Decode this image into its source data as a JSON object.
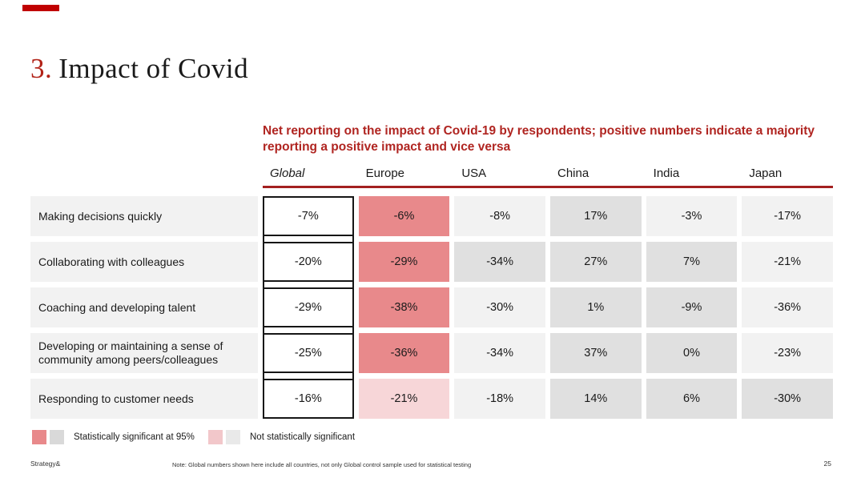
{
  "slide": {
    "title_number": "3.",
    "title_text": "Impact of Covid",
    "subtitle_line1": "Net reporting on the impact of Covid-19 by respondents; positive numbers indicate a majority",
    "subtitle_line2": "reporting a positive impact and vice versa",
    "footer_brand": "Strategy&",
    "footer_note": "Note: Global numbers shown here include all countries, not only Global control sample used for statistical testing",
    "page_number": "25"
  },
  "colors": {
    "accent_red": "#c00000",
    "title_red": "#b22318",
    "subtitle_red": "#b02521",
    "rule_red": "#a32020",
    "significant_red": "#e8898b",
    "not_significant_pink": "#f7d6d8",
    "significant_gray": "#e0e0e0",
    "not_significant_gray": "#f2f2f2",
    "legend_sig_gray": "#d9d9d9",
    "legend_pink": "#f2c7ca",
    "legend_nonsig_gray": "#e9e9e9",
    "text_dark": "#1a1a1a",
    "footer_text": "#333333"
  },
  "table": {
    "columns": [
      "Global",
      "Europe",
      "USA",
      "China",
      "India",
      "Japan"
    ],
    "rows": [
      {
        "label": "Making decisions quickly",
        "cells": [
          {
            "value": "-7%",
            "style": "global"
          },
          {
            "value": "-6%",
            "style": "sig-red"
          },
          {
            "value": "-8%",
            "style": "nonsig-gray"
          },
          {
            "value": "17%",
            "style": "sig-gray"
          },
          {
            "value": "-3%",
            "style": "nonsig-gray"
          },
          {
            "value": "-17%",
            "style": "nonsig-gray"
          }
        ]
      },
      {
        "label": "Collaborating with colleagues",
        "cells": [
          {
            "value": "-20%",
            "style": "global"
          },
          {
            "value": "-29%",
            "style": "sig-red"
          },
          {
            "value": "-34%",
            "style": "sig-gray"
          },
          {
            "value": "27%",
            "style": "sig-gray"
          },
          {
            "value": "7%",
            "style": "sig-gray"
          },
          {
            "value": "-21%",
            "style": "nonsig-gray"
          }
        ]
      },
      {
        "label": "Coaching and developing talent",
        "cells": [
          {
            "value": "-29%",
            "style": "global"
          },
          {
            "value": "-38%",
            "style": "sig-red"
          },
          {
            "value": "-30%",
            "style": "nonsig-gray"
          },
          {
            "value": "1%",
            "style": "sig-gray"
          },
          {
            "value": "-9%",
            "style": "sig-gray"
          },
          {
            "value": "-36%",
            "style": "nonsig-gray"
          }
        ]
      },
      {
        "label": "Developing or maintaining a sense of community among peers/colleagues",
        "cells": [
          {
            "value": "-25%",
            "style": "global"
          },
          {
            "value": "-36%",
            "style": "sig-red"
          },
          {
            "value": "-34%",
            "style": "nonsig-gray"
          },
          {
            "value": "37%",
            "style": "sig-gray"
          },
          {
            "value": "0%",
            "style": "sig-gray"
          },
          {
            "value": "-23%",
            "style": "nonsig-gray"
          }
        ]
      },
      {
        "label": "Responding to customer needs",
        "cells": [
          {
            "value": "-16%",
            "style": "global"
          },
          {
            "value": "-21%",
            "style": "nonsig-pink"
          },
          {
            "value": "-18%",
            "style": "nonsig-gray"
          },
          {
            "value": "14%",
            "style": "sig-gray"
          },
          {
            "value": "6%",
            "style": "sig-gray"
          },
          {
            "value": "-30%",
            "style": "sig-gray"
          }
        ]
      }
    ]
  },
  "legend": {
    "groups": [
      {
        "swatches": [
          "sig-red",
          "legend-gray"
        ],
        "label": "Statistically significant at 95%"
      },
      {
        "swatches": [
          "legend-pink",
          "legend-lightgray"
        ],
        "label": "Not statistically significant"
      }
    ]
  },
  "chart_data": {
    "type": "table",
    "title": "Net reporting on the impact of Covid-19 by respondents; positive numbers indicate a majority reporting a positive impact and vice versa",
    "columns": [
      "Global",
      "Europe",
      "USA",
      "China",
      "India",
      "Japan"
    ],
    "row_labels": [
      "Making decisions quickly",
      "Collaborating with colleagues",
      "Coaching and developing talent",
      "Developing or maintaining a sense of community among peers/colleagues",
      "Responding to customer needs"
    ],
    "values_percent": [
      [
        -7,
        -6,
        -8,
        17,
        -3,
        -17
      ],
      [
        -20,
        -29,
        -34,
        27,
        7,
        -21
      ],
      [
        -29,
        -38,
        -30,
        1,
        -9,
        -36
      ],
      [
        -25,
        -36,
        -34,
        37,
        0,
        -23
      ],
      [
        -16,
        -21,
        -18,
        14,
        6,
        -30
      ]
    ],
    "significant_at_95": {
      "note": "per row, for Europe/USA/China/India/Japan; Global is reference column",
      "matrix": [
        [
          true,
          false,
          true,
          false,
          false
        ],
        [
          true,
          true,
          true,
          true,
          false
        ],
        [
          true,
          false,
          true,
          true,
          false
        ],
        [
          true,
          false,
          true,
          true,
          false
        ],
        [
          false,
          false,
          true,
          true,
          true
        ]
      ]
    },
    "legend_entries": [
      "Statistically significant at 95%",
      "Not statistically significant"
    ]
  }
}
